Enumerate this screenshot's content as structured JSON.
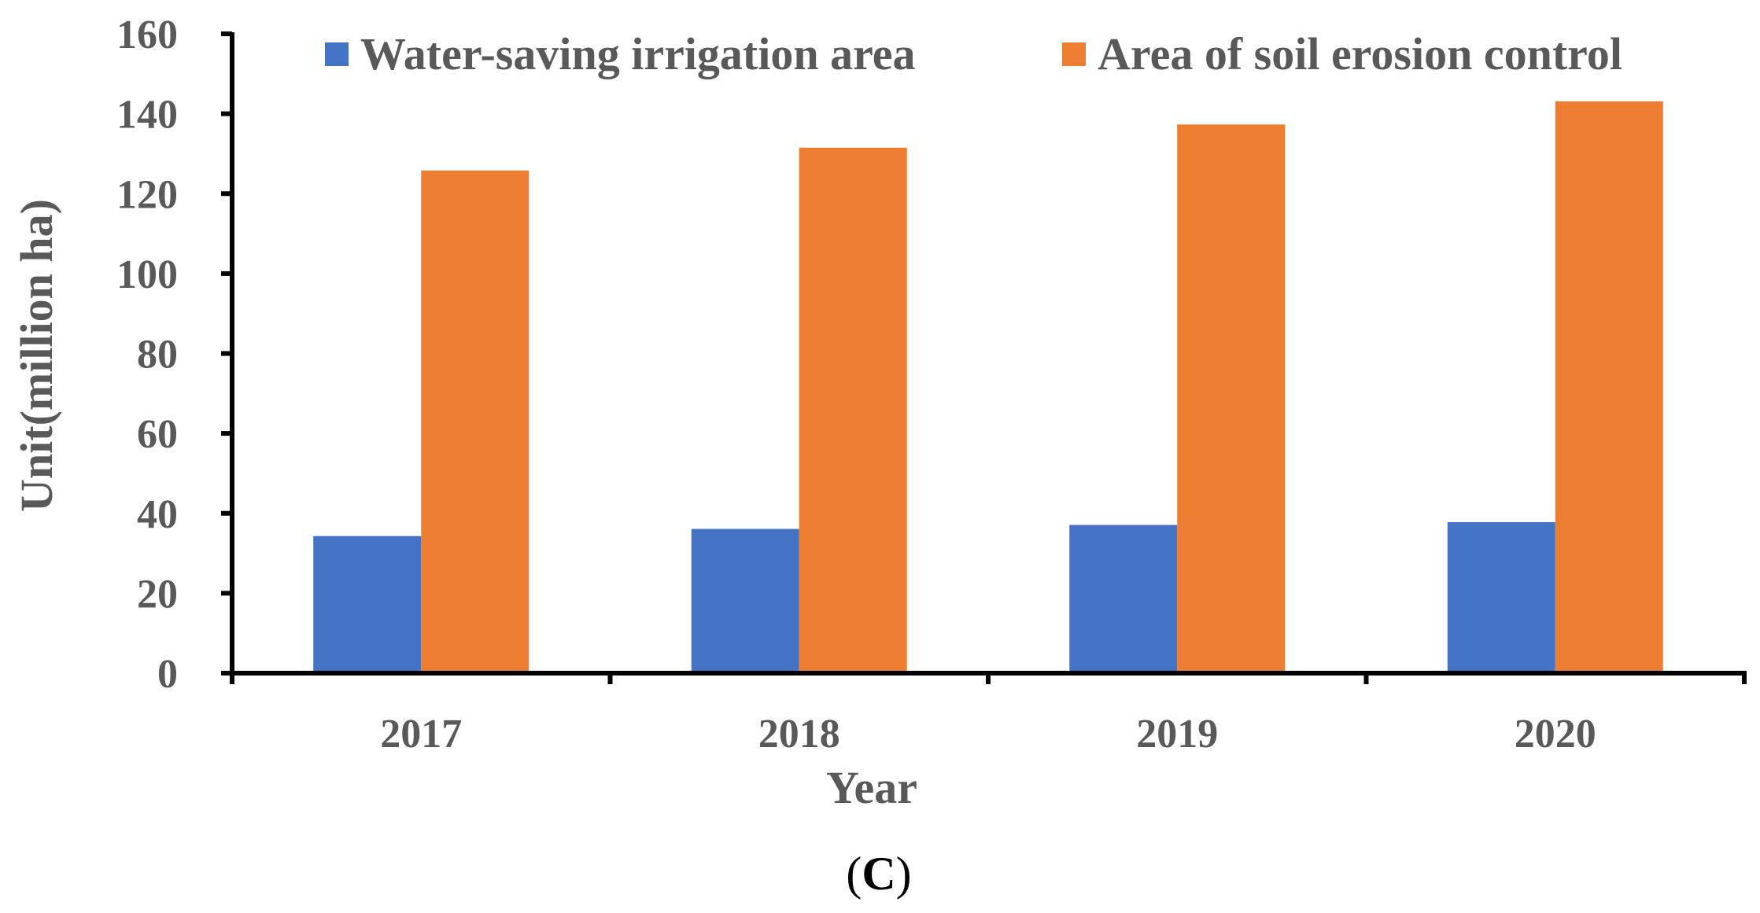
{
  "chart_data": {
    "type": "bar",
    "categories": [
      "2017",
      "2018",
      "2019",
      "2020"
    ],
    "series": [
      {
        "name": "Water-saving irrigation area",
        "color": "#4472C4",
        "values": [
          34.3,
          36.1,
          37.1,
          37.8
        ]
      },
      {
        "name": "Area of soil erosion control",
        "color": "#ED7D31",
        "values": [
          125.8,
          131.5,
          137.3,
          143.1
        ]
      }
    ],
    "xlabel": "Year",
    "ylabel": "Unit(million ha)",
    "ylim": [
      0,
      160
    ],
    "yticks": [
      "0",
      "20",
      "40",
      "60",
      "80",
      "100",
      "120",
      "140",
      "160"
    ],
    "grid": false,
    "legend": "top"
  },
  "panel_label": {
    "open": "(",
    "letter": "C",
    "close": ")"
  }
}
